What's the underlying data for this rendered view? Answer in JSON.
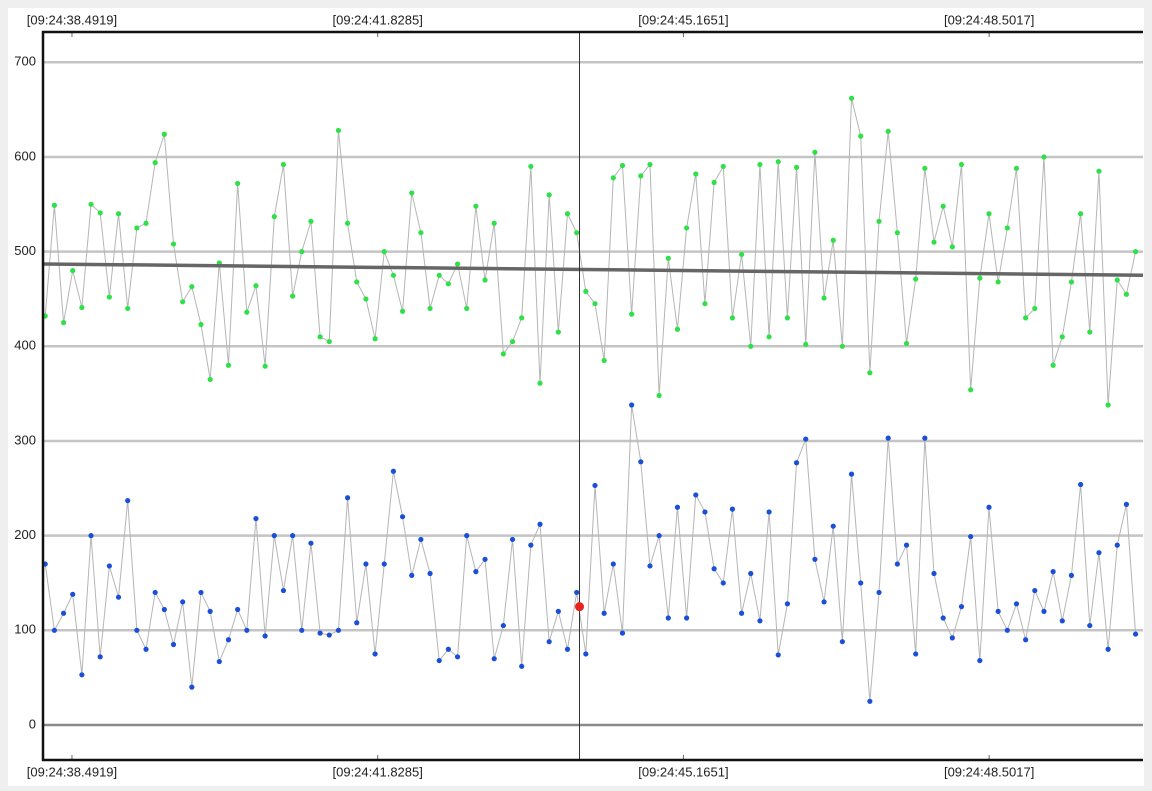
{
  "chart_data": {
    "type": "scatter",
    "x": [
      38.2,
      38.3,
      38.4,
      38.5,
      38.6,
      38.7,
      38.8,
      38.9,
      39.0,
      39.1,
      39.2,
      39.3,
      39.4,
      39.5,
      39.6,
      39.7,
      39.8,
      39.9,
      40.0,
      40.1,
      40.2,
      40.3,
      40.4,
      40.5,
      40.6,
      40.7,
      40.8,
      40.9,
      41.0,
      41.1,
      41.2,
      41.3,
      41.4,
      41.5,
      41.6,
      41.7,
      41.8,
      41.9,
      42.0,
      42.1,
      42.2,
      42.3,
      42.4,
      42.5,
      42.6,
      42.7,
      42.8,
      42.9,
      43.0,
      43.1,
      43.2,
      43.3,
      43.4,
      43.5,
      43.6,
      43.7,
      43.8,
      43.9,
      44.0,
      44.1,
      44.2,
      44.3,
      44.4,
      44.5,
      44.6,
      44.7,
      44.8,
      44.9,
      45.0,
      45.1,
      45.2,
      45.3,
      45.4,
      45.5,
      45.6,
      45.7,
      45.8,
      45.9,
      46.0,
      46.1,
      46.2,
      46.3,
      46.4,
      46.5,
      46.6,
      46.7,
      46.8,
      46.9,
      47.0,
      47.1,
      47.2,
      47.3,
      47.4,
      47.5,
      47.6,
      47.7,
      47.8,
      47.9,
      48.0,
      48.1,
      48.2,
      48.3,
      48.4,
      48.5,
      48.6,
      48.7,
      48.8,
      48.9,
      49.0,
      49.1,
      49.2,
      49.3,
      49.4,
      49.5,
      49.6,
      49.7,
      49.8,
      49.9,
      50.0,
      50.1
    ],
    "series": [
      {
        "color": "#2fe048",
        "values": [
          432,
          549,
          425,
          480,
          441,
          550,
          541,
          452,
          540,
          440,
          525,
          530,
          594,
          624,
          508,
          447,
          463,
          423,
          365,
          488,
          380,
          572,
          436,
          464,
          379,
          537,
          592,
          453,
          500,
          532,
          410,
          405,
          628,
          530,
          468,
          450,
          408,
          500,
          475,
          437,
          562,
          520,
          440,
          475,
          466,
          487,
          440,
          548,
          470,
          530,
          392,
          405,
          430,
          590,
          361,
          560,
          415,
          540,
          520,
          458,
          445,
          385,
          578,
          591,
          434,
          580,
          592,
          348,
          493,
          418,
          525,
          582,
          445,
          573,
          590,
          430,
          497,
          400,
          592,
          410,
          595,
          430,
          589,
          402,
          605,
          451,
          512,
          400,
          662,
          622,
          372,
          532,
          627,
          520,
          403,
          471,
          588,
          510,
          548,
          505,
          592,
          354,
          472,
          540,
          468,
          525,
          588,
          430,
          440,
          600,
          380,
          410,
          468,
          540,
          415,
          585,
          338,
          470,
          455,
          500
        ]
      },
      {
        "color": "#1c4fd8",
        "values": [
          170,
          100,
          118,
          138,
          53,
          200,
          72,
          168,
          135,
          237,
          100,
          80,
          140,
          122,
          85,
          130,
          40,
          140,
          120,
          67,
          90,
          122,
          100,
          218,
          94,
          200,
          142,
          200,
          100,
          192,
          97,
          95,
          100,
          240,
          108,
          170,
          75,
          170,
          268,
          220,
          158,
          196,
          160,
          68,
          80,
          72,
          200,
          162,
          175,
          70,
          105,
          196,
          62,
          190,
          212,
          88,
          120,
          80,
          140,
          75,
          253,
          118,
          170,
          97,
          338,
          278,
          168,
          200,
          113,
          230,
          113,
          243,
          225,
          165,
          150,
          228,
          118,
          160,
          110,
          225,
          74,
          128,
          277,
          302,
          175,
          130,
          210,
          88,
          265,
          150,
          25,
          140,
          303,
          170,
          190,
          75,
          303,
          160,
          113,
          92,
          125,
          199,
          68,
          230,
          120,
          100,
          128,
          90,
          142,
          120,
          162,
          110,
          158,
          254,
          105,
          182,
          80,
          190,
          233,
          96
        ]
      }
    ],
    "trend_line": {
      "x": [
        38.1757,
        50.1809
      ],
      "values": [
        487,
        475
      ],
      "color": "#666666"
    },
    "cursor": {
      "x": 44.031,
      "value": 125,
      "color": "#e8221c"
    },
    "xlim": [
      38.1757,
      50.1809
    ],
    "xticks": [
      {
        "value": 38.4919,
        "label": "[09:24:38.4919]"
      },
      {
        "value": 41.8285,
        "label": "[09:24:41.8285]"
      },
      {
        "value": 45.1651,
        "label": "[09:24:45.1651]"
      },
      {
        "value": 48.5017,
        "label": "[09:24:48.5017]"
      }
    ],
    "ylim": [
      -37,
      732
    ],
    "yticks": [
      0,
      100,
      200,
      300,
      400,
      500,
      600,
      700
    ],
    "grid": true
  }
}
